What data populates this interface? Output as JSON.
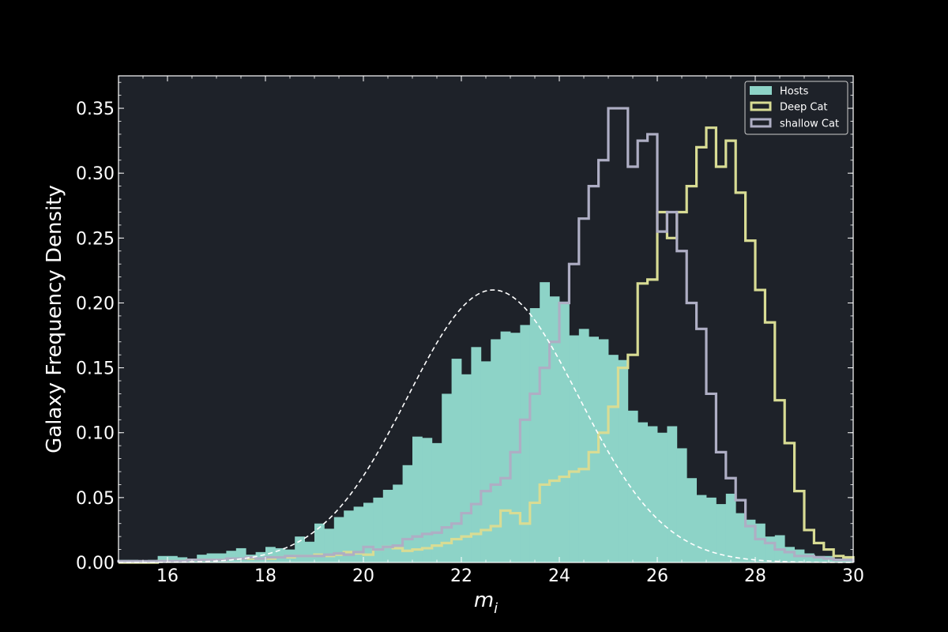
{
  "chart_data": {
    "type": "bar",
    "xlabel": "m",
    "xlabel_sub": "i",
    "ylabel": "Galaxy Frequency Density",
    "xlim": [
      15,
      30
    ],
    "ylim": [
      0,
      0.375
    ],
    "x_ticks": [
      16,
      18,
      20,
      22,
      24,
      26,
      28,
      30
    ],
    "y_ticks": [
      0.0,
      0.05,
      0.1,
      0.15,
      0.2,
      0.25,
      0.3,
      0.35
    ],
    "x_tick_labels": [
      "16",
      "18",
      "20",
      "22",
      "24",
      "26",
      "28",
      "30"
    ],
    "y_tick_labels": [
      "0.00",
      "0.05",
      "0.10",
      "0.15",
      "0.20",
      "0.25",
      "0.30",
      "0.35"
    ],
    "legend_position": "top-right",
    "bin_edges_start": 15.0,
    "bin_width": 0.2,
    "colors": {
      "background": "#000000",
      "plot_background": "#1e2229",
      "hosts": "#8dd3c7",
      "deep": "#d8dc94",
      "shallow": "#aeaec4",
      "fit": "#ffffff"
    },
    "legend": {
      "hosts": "Hosts",
      "deep": "Deep Cat",
      "shallow": "shallow Cat"
    },
    "fit_curve": {
      "type": "gaussian",
      "mean": 22.65,
      "sigma": 1.75,
      "peak": 0.21
    },
    "series": [
      {
        "key": "hosts",
        "style": "filled",
        "values": [
          0.002,
          0.002,
          0.001,
          0.002,
          0.005,
          0.005,
          0.004,
          0.003,
          0.006,
          0.007,
          0.007,
          0.009,
          0.011,
          0.006,
          0.008,
          0.012,
          0.011,
          0.01,
          0.02,
          0.016,
          0.03,
          0.026,
          0.035,
          0.04,
          0.043,
          0.046,
          0.05,
          0.056,
          0.06,
          0.075,
          0.097,
          0.096,
          0.092,
          0.13,
          0.157,
          0.145,
          0.166,
          0.155,
          0.172,
          0.178,
          0.177,
          0.183,
          0.196,
          0.216,
          0.205,
          0.201,
          0.175,
          0.18,
          0.174,
          0.172,
          0.16,
          0.156,
          0.117,
          0.108,
          0.105,
          0.1,
          0.105,
          0.088,
          0.065,
          0.052,
          0.05,
          0.045,
          0.053,
          0.038,
          0.033,
          0.03,
          0.02,
          0.021,
          0.012,
          0.01,
          0.007,
          0.005,
          0.005,
          0.003,
          0.003
        ]
      },
      {
        "key": "deep",
        "style": "step",
        "values": [
          0.0,
          0.0,
          0.0,
          0.0,
          0.001,
          0.001,
          0.001,
          0.002,
          0.002,
          0.002,
          0.002,
          0.003,
          0.003,
          0.003,
          0.003,
          0.003,
          0.004,
          0.004,
          0.005,
          0.005,
          0.006,
          0.005,
          0.006,
          0.008,
          0.007,
          0.006,
          0.01,
          0.012,
          0.011,
          0.009,
          0.01,
          0.011,
          0.013,
          0.015,
          0.018,
          0.02,
          0.022,
          0.025,
          0.028,
          0.04,
          0.038,
          0.03,
          0.046,
          0.06,
          0.063,
          0.066,
          0.07,
          0.072,
          0.085,
          0.1,
          0.12,
          0.15,
          0.16,
          0.215,
          0.218,
          0.27,
          0.25,
          0.27,
          0.29,
          0.32,
          0.335,
          0.305,
          0.325,
          0.285,
          0.248,
          0.21,
          0.185,
          0.125,
          0.092,
          0.055,
          0.025,
          0.015,
          0.01,
          0.005,
          0.004
        ]
      },
      {
        "key": "shallow",
        "style": "step",
        "values": [
          0.001,
          0.001,
          0.001,
          0.001,
          0.001,
          0.001,
          0.001,
          0.002,
          0.002,
          0.002,
          0.002,
          0.003,
          0.003,
          0.004,
          0.003,
          0.004,
          0.004,
          0.005,
          0.005,
          0.005,
          0.005,
          0.006,
          0.007,
          0.006,
          0.008,
          0.012,
          0.01,
          0.012,
          0.013,
          0.018,
          0.02,
          0.022,
          0.023,
          0.027,
          0.03,
          0.038,
          0.045,
          0.055,
          0.06,
          0.065,
          0.085,
          0.11,
          0.13,
          0.15,
          0.17,
          0.2,
          0.23,
          0.265,
          0.29,
          0.31,
          0.35,
          0.35,
          0.305,
          0.325,
          0.33,
          0.255,
          0.27,
          0.24,
          0.2,
          0.18,
          0.13,
          0.085,
          0.065,
          0.048,
          0.028,
          0.018,
          0.015,
          0.01,
          0.008,
          0.005,
          0.005,
          0.004,
          0.003,
          0.002,
          0.002
        ]
      }
    ]
  }
}
